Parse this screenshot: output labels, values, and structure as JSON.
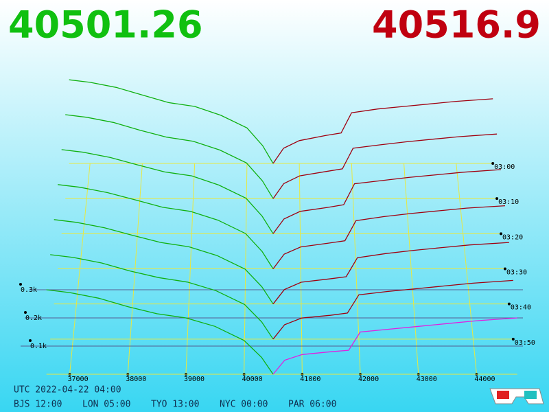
{
  "chart_data": {
    "type": "depth3d",
    "bid_price": 40501.26,
    "ask_price": 40516.9,
    "bid_color": "#10b010",
    "ask_color": "#a00010",
    "front_ask_color": "#e020e0",
    "bid_prices": [
      36600,
      37000,
      37500,
      38000,
      38500,
      39000,
      39500,
      40000,
      40300,
      40500
    ],
    "ask_prices": [
      40500,
      40700,
      41000,
      41500,
      41800,
      42000,
      42500,
      43000,
      43500,
      44000,
      44700
    ],
    "slices": [
      {
        "bids": [
          330,
          320,
          300,
          270,
          240,
          225,
          190,
          140,
          70,
          0
        ],
        "asks": [
          0,
          60,
          90,
          110,
          120,
          200,
          215,
          225,
          235,
          245,
          255
        ]
      },
      {
        "bids": [
          325,
          315,
          295,
          265,
          238,
          222,
          188,
          138,
          68,
          0
        ],
        "asks": [
          0,
          58,
          88,
          105,
          115,
          195,
          208,
          220,
          230,
          240,
          250
        ]
      },
      {
        "bids": [
          320,
          310,
          290,
          262,
          235,
          220,
          185,
          135,
          66,
          0
        ],
        "asks": [
          0,
          56,
          85,
          100,
          110,
          190,
          202,
          214,
          224,
          234,
          244
        ]
      },
      {
        "bids": [
          315,
          305,
          285,
          258,
          230,
          215,
          182,
          132,
          65,
          0
        ],
        "asks": [
          0,
          55,
          82,
          96,
          105,
          180,
          195,
          207,
          217,
          227,
          236
        ]
      },
      {
        "bids": [
          310,
          300,
          280,
          252,
          226,
          210,
          178,
          128,
          63,
          0
        ],
        "asks": [
          0,
          53,
          80,
          92,
          100,
          170,
          185,
          197,
          207,
          217,
          226
        ]
      },
      {
        "bids": [
          305,
          295,
          275,
          246,
          222,
          206,
          175,
          125,
          62,
          0
        ],
        "asks": [
          0,
          52,
          76,
          86,
          94,
          160,
          172,
          182,
          192,
          202,
          212
        ]
      },
      {
        "bids": [
          300,
          290,
          270,
          240,
          215,
          200,
          170,
          120,
          60,
          0
        ],
        "asks": [
          0,
          50,
          70,
          80,
          85,
          150,
          160,
          170,
          180,
          190,
          200
        ]
      }
    ],
    "xticks": [
      37000,
      38000,
      39000,
      40000,
      41000,
      42000,
      43000,
      44000
    ],
    "depth_ticks": [
      {
        "value": 100,
        "label": "0.1k"
      },
      {
        "value": 200,
        "label": "0.2k"
      },
      {
        "value": 300,
        "label": "0.3k"
      }
    ],
    "time_ticks": [
      "03:00",
      "03:10",
      "03:20",
      "03:30",
      "03:40",
      "03:50"
    ]
  },
  "footer": {
    "utc": "UTC 2022-04-22 04:00",
    "cities": [
      "BJS 12:00",
      "LON 05:00",
      "TYO 13:00",
      "NYC 00:00",
      "PAR 06:00"
    ]
  }
}
